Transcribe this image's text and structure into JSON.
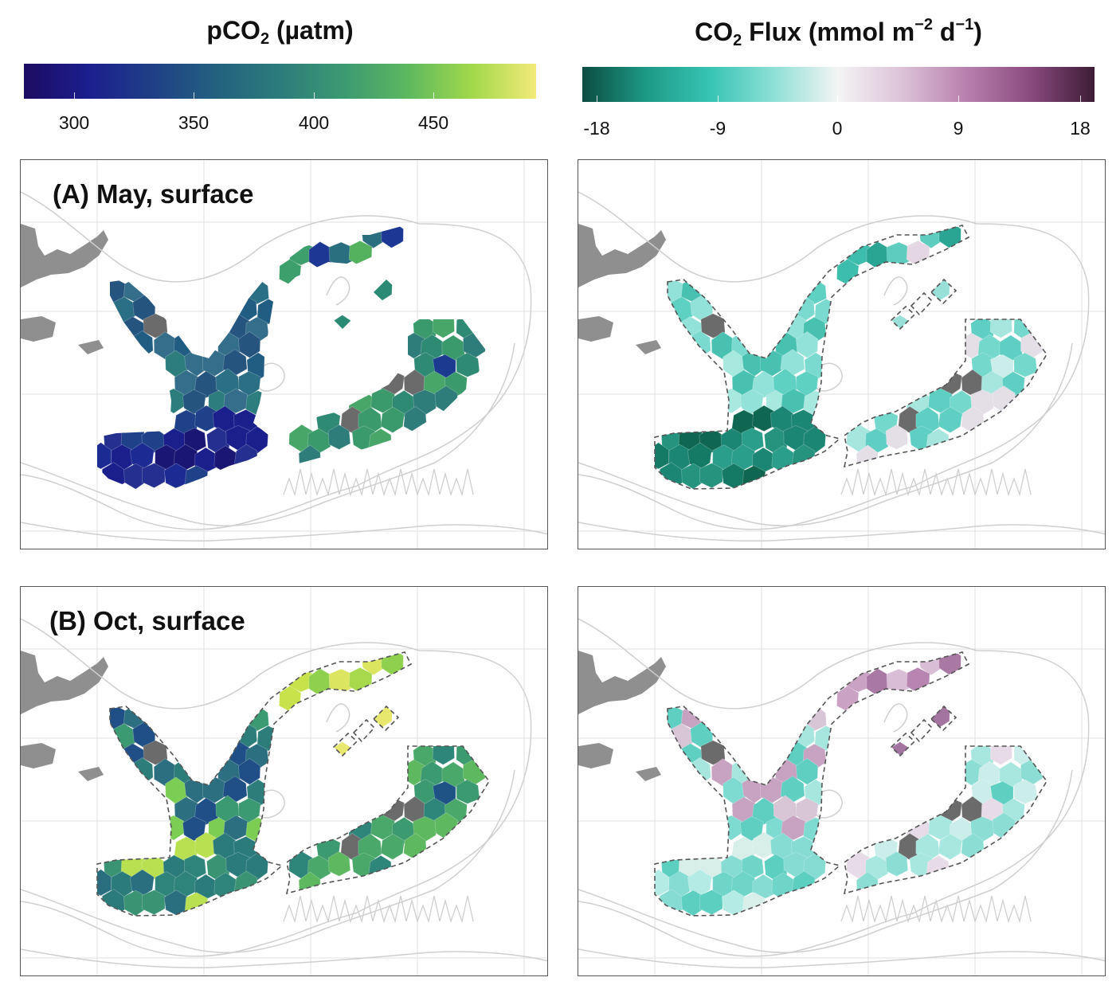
{
  "legends": {
    "pco2": {
      "title_main": "pCO",
      "title_sub": "2",
      "title_rest": " (µatm)",
      "ticks": [
        "300",
        "350",
        "400",
        "450"
      ],
      "colors": [
        "#1d0b62",
        "#1b1e8e",
        "#1f3f86",
        "#23617f",
        "#2c7c7b",
        "#3c9a72",
        "#5db85f",
        "#a2d94b",
        "#f2ea78"
      ]
    },
    "flux": {
      "title_main": "CO",
      "title_sub": "2",
      "title_rest": " Flux (mmol m",
      "title_sup1": "−2",
      "title_mid": " d",
      "title_sup2": "−1",
      "title_end": ")",
      "ticks": [
        "-18",
        "-9",
        "0",
        "9",
        "18"
      ],
      "colors": [
        "#0c4d42",
        "#1d9a86",
        "#37c4b4",
        "#8fe0d6",
        "#f4f4f4",
        "#dcc2d8",
        "#b880ad",
        "#8a4a7e",
        "#3d1c36"
      ]
    }
  },
  "panels": {
    "a_label": "(A) May, surface",
    "b_label": "(B) Oct, surface"
  },
  "map_colors": {
    "land": "#8f8f8f",
    "isobath": "#cfcfcf",
    "grid": "#e2e2e2",
    "missing": "#6b6b6b"
  },
  "map_data": {
    "a_pco2": {
      "west": [
        "#215c83",
        "#2a6f83",
        "#2c7d7b",
        "#346e8a",
        "#25547f"
      ],
      "south": [
        "#1b1f8c",
        "#1c2a93",
        "#252f8f",
        "#1e4189",
        "#1a1674"
      ],
      "east": [
        "#2f8a74",
        "#3b9a6c",
        "#47a668",
        "#2e7d7a",
        "#1a3b90"
      ],
      "north": [
        "#3d9f6b",
        "#54b25f",
        "#2a6f80",
        "#1d3795"
      ],
      "islands": [
        "#2b8a73",
        "#2f8b72",
        "#358f6f"
      ]
    },
    "a_flux": {
      "west": [
        "#7bdad0",
        "#5fd1c3",
        "#a7e8df",
        "#48c1b1",
        "#93e2d9"
      ],
      "south": [
        "#1c8674",
        "#147a65",
        "#26937e",
        "#0f6651",
        "#2a9e8a"
      ],
      "east": [
        "#75d8cc",
        "#5ecfc2",
        "#a6e6df",
        "#e4dfe7",
        "#cbeeea"
      ],
      "north": [
        "#3dbdab",
        "#e4d7e3",
        "#5ecdbf",
        "#2ba593"
      ],
      "islands": [
        "#99e0d8",
        "#80d9cf",
        "#a9e7df"
      ]
    },
    "b_pco2": {
      "west": [
        "#2d7e7a",
        "#3c9a72",
        "#7ccd53",
        "#2b6f80",
        "#1f4f86"
      ],
      "south": [
        "#2c7b7b",
        "#2a6f80",
        "#3a9474",
        "#b9e050",
        "#2e847a"
      ],
      "east": [
        "#3c9a70",
        "#4aa86a",
        "#2e8579",
        "#5db85f",
        "#1f5386"
      ],
      "north": [
        "#c7e24a",
        "#a6d94c",
        "#dbe55f",
        "#8fd14f"
      ],
      "islands": [
        "#e8e76e",
        "#d4e256",
        "#f0ea78"
      ]
    },
    "b_flux": {
      "west": [
        "#a7e6df",
        "#d8c6d7",
        "#7ddbd1",
        "#c7a2c1",
        "#5fcfc2"
      ],
      "south": [
        "#86dcd3",
        "#b4ebe4",
        "#5ccfc1",
        "#d7eee9",
        "#6fd5c9"
      ],
      "east": [
        "#cbeeea",
        "#a7e7df",
        "#e6dbe6",
        "#8cddd4",
        "#5fcfc2"
      ],
      "north": [
        "#caa2c4",
        "#b785b0",
        "#d9bcd5",
        "#a978a3"
      ],
      "islands": [
        "#a474a0",
        "#b585b0",
        "#c29bbf"
      ]
    }
  }
}
